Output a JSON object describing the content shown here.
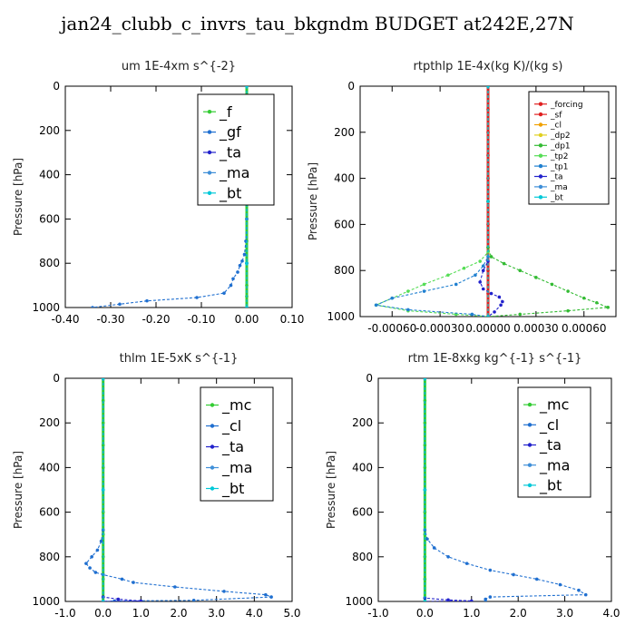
{
  "figure_title": "jan24_clubb_c_invrs_tau_bkgndm  BUDGET at242E,27N",
  "colors": {
    "mc": "#33cc33",
    "cl": "#1f6fd0",
    "ta": "#2222cc",
    "ma": "#3f8fd8",
    "bt": "#00c8d8",
    "forcing": "#e02020",
    "dp1": "#33bb33",
    "tp1": "#2080d0"
  },
  "chart_data": [
    {
      "type": "line",
      "title": "um   1E-4xm s^{-2}",
      "ylabel": "Pressure [hPa]",
      "xlim": [
        -0.4,
        0.1
      ],
      "ylim": [
        1000,
        0
      ],
      "xticks": [
        "-0.40",
        "-0.30",
        "-0.20",
        "-0.10",
        "0.00",
        "0.10"
      ],
      "xtick_values": [
        -0.4,
        -0.3,
        -0.2,
        -0.1,
        0.0,
        0.1
      ],
      "yticks": [
        "0",
        "200",
        "400",
        "600",
        "800",
        "1000"
      ],
      "ytick_values": [
        0,
        200,
        400,
        600,
        800,
        1000
      ],
      "legend_position": "top-right",
      "legend_labels": [
        "_f",
        "_gf",
        "_ta",
        "_ma",
        "_bt"
      ],
      "series": [
        {
          "name": "_f",
          "color": "#33cc33",
          "x": [
            0,
            0,
            0,
            0,
            0,
            0,
            0,
            0,
            0,
            0,
            0,
            0
          ],
          "y": [
            0,
            100,
            200,
            300,
            400,
            500,
            600,
            700,
            800,
            900,
            950,
            1000
          ]
        },
        {
          "name": "_gf",
          "color": "#1f6fd0",
          "x": [
            0,
            0,
            -0.002,
            -0.005,
            -0.01,
            -0.015,
            -0.02,
            -0.03,
            -0.035,
            -0.05,
            -0.11,
            -0.22,
            -0.28,
            -0.34
          ],
          "y": [
            0,
            600,
            700,
            760,
            790,
            810,
            840,
            870,
            900,
            935,
            955,
            970,
            985,
            1000
          ]
        },
        {
          "name": "_ta",
          "color": "#2222cc",
          "x": [
            0,
            0,
            0,
            0
          ],
          "y": [
            0,
            400,
            800,
            1000
          ]
        },
        {
          "name": "_ma",
          "color": "#3f8fd8",
          "x": [
            0,
            0,
            0,
            0
          ],
          "y": [
            0,
            400,
            800,
            1000
          ]
        },
        {
          "name": "_bt",
          "color": "#00c8d8",
          "x": [
            0,
            0,
            0,
            0
          ],
          "y": [
            0,
            400,
            800,
            1000
          ]
        }
      ]
    },
    {
      "type": "line",
      "title": "rtpthlp   1E-4x(kg K)/(kg s)",
      "ylabel": "Pressure [hPa]",
      "xlim": [
        -0.0008,
        0.0008
      ],
      "ylim": [
        1000,
        0
      ],
      "xticks": [
        "-0.00060",
        "-0.00030",
        "0.00000",
        "0.00030",
        "0.00060"
      ],
      "xtick_values": [
        -0.0006,
        -0.0003,
        0.0,
        0.0003,
        0.0006
      ],
      "yticks": [
        "0",
        "200",
        "400",
        "600",
        "800",
        "1000"
      ],
      "ytick_values": [
        0,
        200,
        400,
        600,
        800,
        1000
      ],
      "legend_position": "top-right",
      "legend_labels": [
        "_forcing",
        "_sf",
        "_cl",
        "_dp2",
        "_dp1",
        "_tp2",
        "_tp1",
        "_ta",
        "_ma",
        "_bt"
      ],
      "series": [
        {
          "name": "_forcing",
          "color": "#e02020",
          "x": [
            0,
            0,
            0,
            0,
            0,
            0,
            0,
            0,
            0,
            0,
            0
          ],
          "y": [
            0,
            100,
            200,
            300,
            400,
            500,
            600,
            700,
            800,
            900,
            1000
          ]
        },
        {
          "name": "_sf",
          "color": "#e02020",
          "x": [
            0,
            0,
            0
          ],
          "y": [
            0,
            500,
            1000
          ]
        },
        {
          "name": "_cl",
          "color": "#f0a000",
          "x": [
            0,
            0,
            0
          ],
          "y": [
            0,
            500,
            1000
          ]
        },
        {
          "name": "_dp2",
          "color": "#e0d020",
          "x": [
            0,
            0,
            0
          ],
          "y": [
            0,
            500,
            1000
          ]
        },
        {
          "name": "_dp1",
          "color": "#33bb33",
          "x": [
            0,
            0,
            2e-05,
            0.0001,
            0.0002,
            0.0003,
            0.0004,
            0.0005,
            0.0006,
            0.00068,
            0.00075,
            0.0005,
            0.0002,
            0
          ],
          "y": [
            0,
            700,
            740,
            770,
            800,
            830,
            860,
            890,
            920,
            940,
            960,
            975,
            990,
            1000
          ]
        },
        {
          "name": "_tp2",
          "color": "#55dd55",
          "x": [
            0,
            0,
            -5e-05,
            -0.00015,
            -0.00025,
            -0.0004,
            -0.0005,
            -0.0006,
            -0.0007,
            -0.0005,
            -0.0002,
            0
          ],
          "y": [
            0,
            720,
            760,
            790,
            820,
            860,
            890,
            920,
            950,
            975,
            990,
            1000
          ]
        },
        {
          "name": "_tp1",
          "color": "#2080d0",
          "x": [
            0,
            0,
            -3e-05,
            -8e-05,
            -0.0002,
            -0.0004,
            -0.0006,
            -0.0007,
            -0.0005,
            -0.0001,
            0
          ],
          "y": [
            0,
            740,
            780,
            820,
            860,
            890,
            920,
            950,
            970,
            990,
            1000
          ]
        },
        {
          "name": "_ta",
          "color": "#2222cc",
          "x": [
            0,
            0,
            -3e-05,
            -5e-05,
            -3e-05,
            2e-05,
            7e-05,
            9e-05,
            8e-05,
            4e-05,
            0
          ],
          "y": [
            0,
            760,
            800,
            850,
            880,
            900,
            915,
            935,
            950,
            980,
            1000
          ]
        },
        {
          "name": "_ma",
          "color": "#3f8fd8",
          "x": [
            0,
            0,
            0
          ],
          "y": [
            0,
            500,
            1000
          ]
        },
        {
          "name": "_bt",
          "color": "#00c8d8",
          "x": [
            0,
            0,
            0
          ],
          "y": [
            0,
            500,
            1000
          ]
        }
      ]
    },
    {
      "type": "line",
      "title": "thlm   1E-5xK s^{-1}",
      "ylabel": "Pressure [hPa]",
      "xlim": [
        -1.0,
        5.0
      ],
      "ylim": [
        1000,
        0
      ],
      "xticks": [
        "-1.0",
        "0.0",
        "1.0",
        "2.0",
        "3.0",
        "4.0",
        "5.0"
      ],
      "xtick_values": [
        -1,
        0,
        1,
        2,
        3,
        4,
        5
      ],
      "yticks": [
        "0",
        "200",
        "400",
        "600",
        "800",
        "1000"
      ],
      "ytick_values": [
        0,
        200,
        400,
        600,
        800,
        1000
      ],
      "legend_position": "top-right",
      "legend_labels": [
        "_mc",
        "_cl",
        "_ta",
        "_ma",
        "_bt"
      ],
      "series": [
        {
          "name": "_mc",
          "color": "#33cc33",
          "x": [
            0,
            0,
            0,
            0,
            0,
            0,
            0,
            0,
            0,
            0,
            0
          ],
          "y": [
            0,
            100,
            200,
            300,
            400,
            500,
            600,
            700,
            800,
            900,
            1000
          ]
        },
        {
          "name": "_cl",
          "color": "#1f6fd0",
          "x": [
            0,
            0,
            -0.05,
            -0.15,
            -0.3,
            -0.45,
            -0.35,
            -0.2,
            0.0,
            0.5,
            0.8,
            1.9,
            3.2,
            4.3,
            4.45,
            2.4,
            0.3,
            0
          ],
          "y": [
            0,
            680,
            730,
            770,
            800,
            830,
            850,
            870,
            880,
            900,
            915,
            935,
            955,
            970,
            980,
            995,
            998,
            1000
          ]
        },
        {
          "name": "_ta",
          "color": "#2222cc",
          "x": [
            0,
            0,
            0.4,
            1.0,
            0
          ],
          "y": [
            0,
            980,
            990,
            998,
            1000
          ]
        },
        {
          "name": "_ma",
          "color": "#3f8fd8",
          "x": [
            0,
            0,
            0
          ],
          "y": [
            0,
            500,
            1000
          ]
        },
        {
          "name": "_bt",
          "color": "#00c8d8",
          "x": [
            0,
            0,
            0
          ],
          "y": [
            0,
            500,
            1000
          ]
        }
      ]
    },
    {
      "type": "line",
      "title": "rtm   1E-8xkg kg^{-1} s^{-1}",
      "ylabel": "Pressure [hPa]",
      "xlim": [
        -1.0,
        4.0
      ],
      "ylim": [
        1000,
        0
      ],
      "xticks": [
        "-1.0",
        "0.0",
        "1.0",
        "2.0",
        "3.0",
        "4.0"
      ],
      "xtick_values": [
        -1,
        0,
        1,
        2,
        3,
        4
      ],
      "yticks": [
        "0",
        "200",
        "400",
        "600",
        "800",
        "1000"
      ],
      "ytick_values": [
        0,
        200,
        400,
        600,
        800,
        1000
      ],
      "legend_position": "top-right",
      "legend_labels": [
        "_mc",
        "_cl",
        "_ta",
        "_ma",
        "_bt"
      ],
      "series": [
        {
          "name": "_mc",
          "color": "#33cc33",
          "x": [
            0,
            0,
            0,
            0,
            0,
            0,
            0,
            0,
            0,
            0,
            0
          ],
          "y": [
            0,
            100,
            200,
            300,
            400,
            500,
            600,
            700,
            800,
            900,
            1000
          ]
        },
        {
          "name": "_cl",
          "color": "#1f6fd0",
          "x": [
            0,
            0,
            0.05,
            0.2,
            0.5,
            0.9,
            1.4,
            1.9,
            2.4,
            2.9,
            3.3,
            3.45,
            1.4,
            1.3,
            1.3
          ],
          "y": [
            0,
            680,
            720,
            760,
            800,
            830,
            860,
            880,
            900,
            925,
            950,
            970,
            980,
            990,
            1000
          ]
        },
        {
          "name": "_ta",
          "color": "#2222cc",
          "x": [
            0,
            0,
            0.5,
            1.0,
            0
          ],
          "y": [
            0,
            985,
            993,
            998,
            1000
          ]
        },
        {
          "name": "_ma",
          "color": "#3f8fd8",
          "x": [
            0,
            0,
            0
          ],
          "y": [
            0,
            500,
            1000
          ]
        },
        {
          "name": "_bt",
          "color": "#00c8d8",
          "x": [
            0,
            0,
            0
          ],
          "y": [
            0,
            500,
            1000
          ]
        }
      ]
    }
  ]
}
